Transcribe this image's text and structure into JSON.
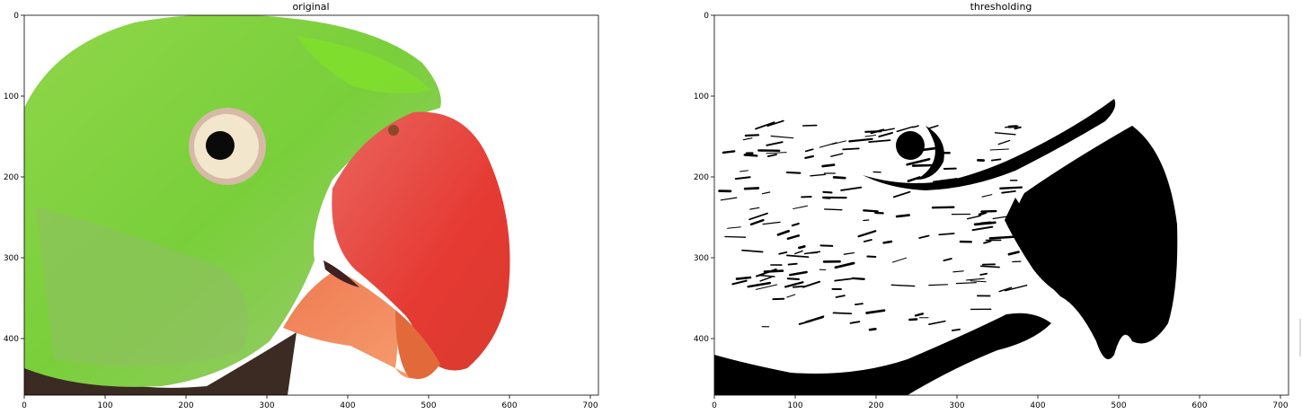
{
  "chart_data": [
    {
      "type": "image",
      "title": "original",
      "xlabel": "",
      "ylabel": "",
      "xlim": [
        0,
        710
      ],
      "ylim": [
        470,
        0
      ],
      "x_ticks": [
        0,
        100,
        200,
        300,
        400,
        500,
        600,
        700
      ],
      "y_ticks": [
        0,
        100,
        200,
        300,
        400
      ],
      "image_content": "green parrot head with red beak on white background",
      "colors": {
        "background": "#ffffff",
        "plumage_light": "#9ad65a",
        "plumage_bright": "#7fdc2a",
        "plumage_dark": "#6fa845",
        "beak": "#e8403a",
        "beak_dark": "#c9342c",
        "lower_beak": "#f08a5a",
        "neck_dark": "#3a2a20",
        "eye_ring": "#f0e3c8",
        "pupil": "#0a0a0a"
      }
    },
    {
      "type": "image",
      "title": "thresholding",
      "xlabel": "",
      "ylabel": "",
      "xlim": [
        0,
        710
      ],
      "ylim": [
        470,
        0
      ],
      "x_ticks": [
        0,
        100,
        200,
        300,
        400,
        500,
        600,
        700
      ],
      "y_ticks": [
        0,
        100,
        200,
        300,
        400
      ],
      "image_content": "binary thresholded version of the parrot image",
      "colors": {
        "foreground": "#000000",
        "background": "#ffffff"
      }
    }
  ]
}
